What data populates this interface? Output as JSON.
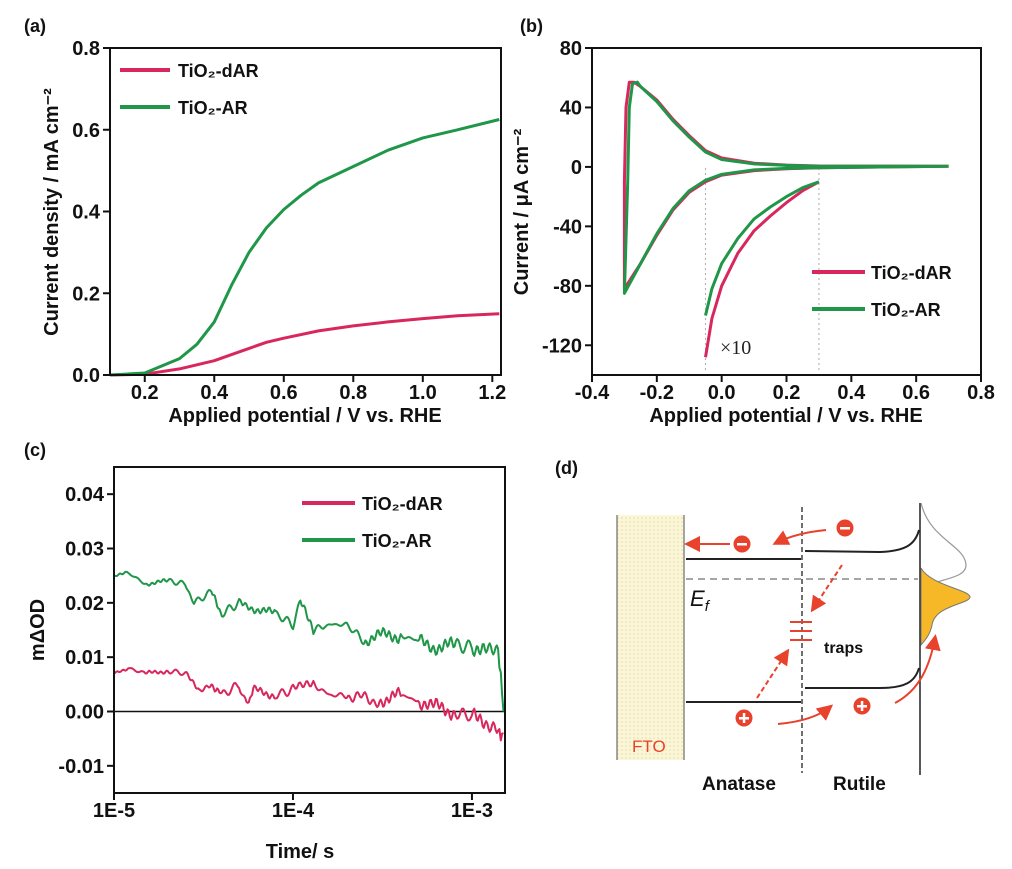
{
  "colors": {
    "dAR": "#d8275c",
    "AR": "#1f9648",
    "axis": "#111111",
    "ref": "#aaaaaa",
    "arrow": "#e8412c",
    "dos_fill": "#f6b827"
  },
  "chart_data": [
    {
      "panel": "(a)",
      "type": "line",
      "xlabel": "Applied potential / V vs. RHE",
      "ylabel": "Current density / mA cm⁻²",
      "xlim": [
        0.1,
        1.225
      ],
      "ylim": [
        0,
        0.8
      ],
      "xticks": [
        0.2,
        0.4,
        0.6,
        0.8,
        1.0,
        1.2
      ],
      "xtick_labels": [
        "0.2",
        "0.4",
        "0.6",
        "0.8",
        "1.0",
        "1.2"
      ],
      "yticks": [
        0,
        0.2,
        0.4,
        0.6,
        0.8
      ],
      "ytick_labels": [
        "0.0",
        "0.2",
        "0.4",
        "0.6",
        "0.8"
      ],
      "legend": "top-left",
      "series": [
        {
          "name": "TiO₂-dAR",
          "color": "#d8275c",
          "x": [
            0.1,
            0.2,
            0.3,
            0.4,
            0.45,
            0.5,
            0.55,
            0.6,
            0.7,
            0.8,
            0.9,
            1.0,
            1.1,
            1.22
          ],
          "y": [
            0,
            0.002,
            0.015,
            0.035,
            0.05,
            0.065,
            0.08,
            0.09,
            0.108,
            0.12,
            0.13,
            0.138,
            0.145,
            0.15
          ]
        },
        {
          "name": "TiO₂-AR",
          "color": "#1f9648",
          "x": [
            0.1,
            0.2,
            0.3,
            0.35,
            0.4,
            0.45,
            0.5,
            0.55,
            0.6,
            0.65,
            0.7,
            0.8,
            0.9,
            1.0,
            1.1,
            1.22
          ],
          "y": [
            0,
            0.005,
            0.04,
            0.075,
            0.13,
            0.22,
            0.3,
            0.36,
            0.405,
            0.44,
            0.47,
            0.51,
            0.55,
            0.58,
            0.6,
            0.625
          ]
        }
      ]
    },
    {
      "panel": "(b)",
      "type": "line",
      "xlabel": "Applied potential / V vs. RHE",
      "ylabel": "Current / μA cm⁻²",
      "xlim": [
        -0.4,
        0.8
      ],
      "ylim": [
        -140,
        80
      ],
      "xticks": [
        -0.4,
        -0.2,
        0.0,
        0.2,
        0.4,
        0.6,
        0.8
      ],
      "xtick_labels": [
        "-0.4",
        "-0.2",
        "0.0",
        "0.2",
        "0.4",
        "0.6",
        "0.8"
      ],
      "yticks": [
        -120,
        -80,
        -40,
        0,
        40,
        80
      ],
      "ytick_labels": [
        "-120",
        "-80",
        "-40",
        "0",
        "40",
        "80"
      ],
      "legend": "lower-right",
      "annotation": "×10",
      "reference_lines_x": [
        -0.05,
        0.3
      ],
      "series": [
        {
          "name": "TiO₂-dAR",
          "color": "#d8275c",
          "x": [
            0.7,
            0.3,
            0.2,
            0.1,
            0.0,
            -0.05,
            -0.1,
            -0.15,
            -0.2,
            -0.25,
            -0.3,
            -0.3,
            -0.295,
            -0.285,
            -0.27,
            -0.25,
            -0.2,
            -0.15,
            -0.1,
            -0.05,
            0.0,
            0.1,
            0.2,
            0.3,
            0.7
          ],
          "y": [
            0.5,
            -0.5,
            -1.2,
            -2.5,
            -5.5,
            -10,
            -17,
            -29,
            -46,
            -65,
            -82,
            -10,
            40,
            57,
            57,
            54,
            45,
            32,
            21,
            11,
            6,
            2.5,
            1.2,
            0.6,
            0.5
          ]
        },
        {
          "name": "TiO₂-AR",
          "color": "#1f9648",
          "x": [
            0.7,
            0.3,
            0.2,
            0.1,
            0.0,
            -0.05,
            -0.1,
            -0.15,
            -0.2,
            -0.25,
            -0.3,
            -0.29,
            -0.285,
            -0.275,
            -0.26,
            -0.25,
            -0.2,
            -0.15,
            -0.1,
            -0.05,
            0.0,
            0.1,
            0.2,
            0.3,
            0.7
          ],
          "y": [
            0.5,
            -0.5,
            -1,
            -2,
            -5,
            -9,
            -16,
            -28,
            -45,
            -65,
            -85,
            -10,
            40,
            56,
            57,
            54,
            44,
            31,
            20,
            10,
            5,
            2,
            1,
            0.5,
            0.5
          ]
        },
        {
          "name": "TiO₂-dAR ×10",
          "color": "#d8275c",
          "x": [
            0.3,
            0.25,
            0.2,
            0.15,
            0.1,
            0.05,
            0.0,
            -0.03,
            -0.05
          ],
          "y": [
            -10,
            -16,
            -24,
            -33,
            -43,
            -58,
            -80,
            -102,
            -128
          ]
        },
        {
          "name": "TiO₂-AR ×10",
          "color": "#1f9648",
          "x": [
            0.3,
            0.25,
            0.2,
            0.15,
            0.1,
            0.05,
            0.0,
            -0.03,
            -0.05
          ],
          "y": [
            -10,
            -14,
            -20,
            -27,
            -35,
            -48,
            -65,
            -82,
            -100
          ]
        }
      ]
    },
    {
      "panel": "(c)",
      "type": "line",
      "xlabel": "Time/ s",
      "ylabel": "mΔOD",
      "xscale": "log",
      "xlim": [
        1e-05,
        0.00153
      ],
      "ylim": [
        -0.015,
        0.045
      ],
      "xticks": [
        1e-05,
        0.0001,
        0.001
      ],
      "xtick_labels": [
        "1E-5",
        "1E-4",
        "1E-3"
      ],
      "yticks": [
        -0.01,
        0,
        0.01,
        0.02,
        0.03,
        0.04
      ],
      "ytick_labels": [
        "-0.01",
        "0.00",
        "0.01",
        "0.02",
        "0.03",
        "0.04"
      ],
      "zero_line": true,
      "legend": "top-right",
      "series": [
        {
          "name": "TiO₂-dAR",
          "color": "#d8275c",
          "x": [
            1e-05,
            1.2e-05,
            1.5e-05,
            2e-05,
            2.5e-05,
            3e-05,
            3.5e-05,
            4e-05,
            5e-05,
            5.5e-05,
            6e-05,
            8e-05,
            0.0001,
            0.00013,
            0.00016,
            0.0002,
            0.0003,
            0.0004,
            0.0005,
            0.0006,
            0.0008,
            0.001,
            0.0012,
            0.0014,
            0.0015
          ],
          "y": [
            0.007,
            0.008,
            0.007,
            0.0075,
            0.007,
            0.004,
            0.005,
            0.003,
            0.005,
            0.001,
            0.004,
            0.003,
            0.004,
            0.005,
            0.003,
            0.003,
            0.002,
            0.003,
            0.002,
            0.001,
            0.0,
            -0.001,
            -0.002,
            -0.003,
            -0.004
          ]
        },
        {
          "name": "TiO₂-AR",
          "color": "#1f9648",
          "x": [
            1e-05,
            1.2e-05,
            1.5e-05,
            2e-05,
            2.5e-05,
            2.8e-05,
            3.5e-05,
            4e-05,
            5e-05,
            6e-05,
            8e-05,
            0.0001,
            0.00011,
            0.00013,
            0.00016,
            0.0002,
            0.00025,
            0.0003,
            0.0004,
            0.0005,
            0.0006,
            0.0008,
            0.001,
            0.0012,
            0.0014,
            0.0015
          ],
          "y": [
            0.025,
            0.0255,
            0.0235,
            0.024,
            0.0235,
            0.02,
            0.022,
            0.018,
            0.02,
            0.019,
            0.018,
            0.016,
            0.02,
            0.015,
            0.016,
            0.016,
            0.013,
            0.014,
            0.014,
            0.013,
            0.012,
            0.012,
            0.012,
            0.011,
            0.011,
            0.0
          ]
        }
      ]
    }
  ],
  "diagram": {
    "panel": "(d)",
    "fto_label": "FTO",
    "anatase_label": "Anatase",
    "rutile_label": "Rutile",
    "traps_label": "traps",
    "ef_main": "E",
    "ef_sub": "f",
    "electron_symbol": "−",
    "hole_symbol": "+"
  }
}
